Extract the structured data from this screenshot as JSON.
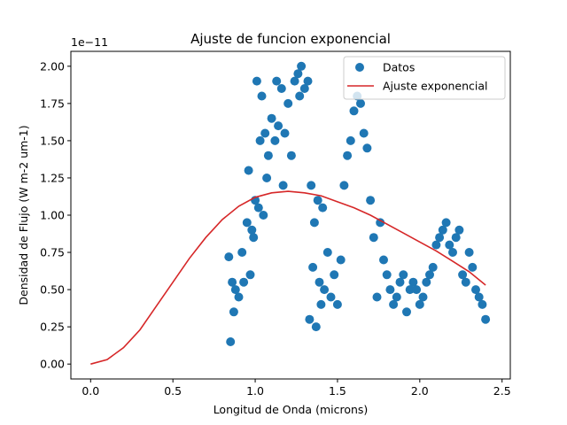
{
  "chart_data": {
    "type": "scatter",
    "title": "Ajuste de funcion exponencial",
    "xlabel": "Longitud de Onda (microns)",
    "ylabel": "Densidad de Flujo (W m-2 um-1)",
    "y_offset_text": "1e−11",
    "xlim": [
      -0.12,
      2.55
    ],
    "ylim": [
      -0.1,
      2.1
    ],
    "y_scale": 1e-11,
    "x_ticks": [
      0.0,
      0.5,
      1.0,
      1.5,
      2.0,
      2.5
    ],
    "x_tick_labels": [
      "0.0",
      "0.5",
      "1.0",
      "1.5",
      "2.0",
      "2.5"
    ],
    "y_ticks": [
      0.0,
      0.25,
      0.5,
      0.75,
      1.0,
      1.25,
      1.5,
      1.75,
      2.0
    ],
    "y_tick_labels": [
      "0.00",
      "0.25",
      "0.50",
      "0.75",
      "1.00",
      "1.25",
      "1.50",
      "1.75",
      "2.00"
    ],
    "grid": false,
    "legend_position": "top-right",
    "series": [
      {
        "name": "Datos",
        "kind": "scatter",
        "color": "#1f77b4",
        "x": [
          0.84,
          0.85,
          0.86,
          0.87,
          0.88,
          0.9,
          0.92,
          0.93,
          0.95,
          0.96,
          0.97,
          0.98,
          0.99,
          1.0,
          1.01,
          1.02,
          1.03,
          1.04,
          1.05,
          1.06,
          1.07,
          1.08,
          1.1,
          1.12,
          1.13,
          1.14,
          1.16,
          1.17,
          1.18,
          1.2,
          1.22,
          1.24,
          1.26,
          1.27,
          1.28,
          1.3,
          1.32,
          1.33,
          1.34,
          1.35,
          1.36,
          1.37,
          1.38,
          1.39,
          1.4,
          1.41,
          1.42,
          1.44,
          1.46,
          1.48,
          1.5,
          1.52,
          1.54,
          1.56,
          1.58,
          1.6,
          1.62,
          1.64,
          1.66,
          1.68,
          1.7,
          1.72,
          1.74,
          1.76,
          1.78,
          1.8,
          1.82,
          1.84,
          1.86,
          1.88,
          1.9,
          1.92,
          1.94,
          1.96,
          1.98,
          2.0,
          2.02,
          2.04,
          2.06,
          2.08,
          2.1,
          2.12,
          2.14,
          2.16,
          2.18,
          2.2,
          2.22,
          2.24,
          2.26,
          2.28,
          2.3,
          2.32,
          2.34,
          2.36,
          2.38,
          2.4
        ],
        "y": [
          0.72,
          0.15,
          0.55,
          0.35,
          0.5,
          0.45,
          0.75,
          0.55,
          0.95,
          1.3,
          0.6,
          0.9,
          0.85,
          1.1,
          1.9,
          1.05,
          1.5,
          1.8,
          1.0,
          1.55,
          1.25,
          1.4,
          1.65,
          1.5,
          1.9,
          1.6,
          1.85,
          1.2,
          1.55,
          1.75,
          1.4,
          1.9,
          1.95,
          1.8,
          2.0,
          1.85,
          1.9,
          0.3,
          1.2,
          0.65,
          0.95,
          0.25,
          1.1,
          0.55,
          0.4,
          1.05,
          0.5,
          0.75,
          0.45,
          0.6,
          0.4,
          0.7,
          1.2,
          1.4,
          1.5,
          1.7,
          1.8,
          1.75,
          1.55,
          1.45,
          1.1,
          0.85,
          0.45,
          0.95,
          0.7,
          0.6,
          0.5,
          0.4,
          0.45,
          0.55,
          0.6,
          0.35,
          0.5,
          0.55,
          0.5,
          0.4,
          0.45,
          0.55,
          0.6,
          0.65,
          0.8,
          0.85,
          0.9,
          0.95,
          0.8,
          0.75,
          0.85,
          0.9,
          0.6,
          0.55,
          0.75,
          0.65,
          0.5,
          0.45,
          0.4,
          0.3
        ]
      },
      {
        "name": "Ajuste exponencial",
        "kind": "line",
        "color": "#d62728",
        "x": [
          0.0,
          0.1,
          0.2,
          0.3,
          0.4,
          0.5,
          0.6,
          0.7,
          0.8,
          0.9,
          1.0,
          1.1,
          1.2,
          1.3,
          1.4,
          1.5,
          1.6,
          1.7,
          1.8,
          1.9,
          2.0,
          2.1,
          2.2,
          2.3,
          2.4
        ],
        "y": [
          0.0,
          0.03,
          0.11,
          0.23,
          0.39,
          0.55,
          0.71,
          0.85,
          0.97,
          1.06,
          1.12,
          1.15,
          1.16,
          1.15,
          1.13,
          1.09,
          1.05,
          1.0,
          0.94,
          0.88,
          0.82,
          0.76,
          0.69,
          0.62,
          0.53
        ]
      }
    ]
  }
}
